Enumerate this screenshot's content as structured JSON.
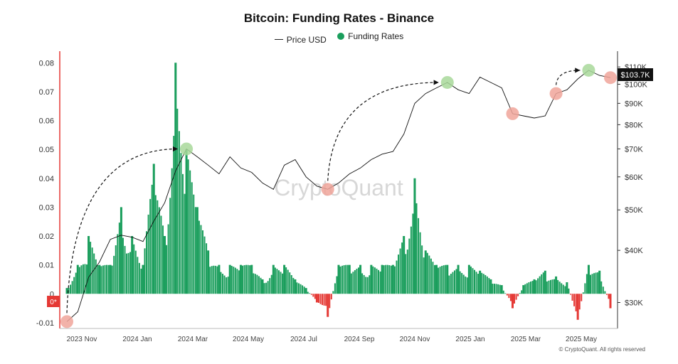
{
  "chart_data": {
    "type": "bar",
    "title": "Bitcoin: Funding Rates - Binance",
    "legend": [
      "Price USD",
      "Funding Rates"
    ],
    "legend_position": "top-center",
    "left_axis": {
      "ticks": [
        "0.08",
        "0.07",
        "0.06",
        "0.05",
        "0.04",
        "0.03",
        "0.02",
        "0.01",
        "0",
        "-0.01"
      ],
      "range": [
        -0.012,
        0.084
      ]
    },
    "right_axis": {
      "scale": "log",
      "ticks": [
        "$110K",
        "$100K",
        "$90K",
        "$80K",
        "$70K",
        "$60K",
        "$50K",
        "$40K",
        "$30K"
      ],
      "range": [
        26000,
        120000
      ]
    },
    "x_ticks": [
      "2023 Nov",
      "2024 Jan",
      "2024 Mar",
      "2024 May",
      "2024 Jul",
      "2024 Sep",
      "2024 Nov",
      "2025 Jan",
      "2025 Mar",
      "2025 May"
    ],
    "price_label": "$103.7K",
    "zero_label": "0*",
    "watermark": "CryptoQuant",
    "footer": "© CryptoQuant. All rights reserved",
    "grid": false,
    "colors": {
      "positive": "#1a9e5c",
      "negative": "#e53935",
      "price": "#111111",
      "axis_red": "#e53935",
      "high_marker": "#a8d89a",
      "low_marker": "#f0a59a"
    },
    "series": [
      {
        "name": "Price USD",
        "values": [
          27000,
          28500,
          34500,
          37500,
          42500,
          43500,
          43000,
          42000,
          47000,
          52000,
          62000,
          70000,
          67000,
          64000,
          61000,
          67000,
          63000,
          61500,
          58000,
          56000,
          64000,
          66000,
          60000,
          57000,
          56000,
          58000,
          61000,
          63000,
          66000,
          68000,
          69000,
          76000,
          90000,
          95000,
          98000,
          101000,
          97000,
          95000,
          104000,
          101000,
          98000,
          85000,
          84000,
          83000,
          84000,
          95000,
          97000,
          103000,
          108000,
          105000,
          103700
        ]
      },
      {
        "name": "Funding Rates",
        "values": [
          0.002,
          0.01,
          0.02,
          0.01,
          0.01,
          0.03,
          0.02,
          0.01,
          0.045,
          0.02,
          0.08,
          0.05,
          0.03,
          0.015,
          0.01,
          0.01,
          0.01,
          0.01,
          0.005,
          0.01,
          0.01,
          0.005,
          0.002,
          -0.003,
          -0.008,
          0.01,
          0.01,
          0.01,
          0.01,
          0.01,
          0.01,
          0.02,
          0.04,
          0.015,
          0.01,
          0.01,
          0.01,
          0.01,
          0.008,
          0.005,
          0.003,
          -0.005,
          0.003,
          0.005,
          0.008,
          0.006,
          0.004,
          -0.009,
          0.01,
          0.008,
          -0.005
        ]
      }
    ],
    "annotations": [
      {
        "type": "low",
        "x_index": 0
      },
      {
        "type": "high",
        "x_index": 11
      },
      {
        "type": "low",
        "x_index": 24
      },
      {
        "type": "high",
        "x_index": 35
      },
      {
        "type": "low",
        "x_index": 41
      },
      {
        "type": "low",
        "x_index": 45
      },
      {
        "type": "high",
        "x_index": 48
      },
      {
        "type": "low",
        "x_index": 50
      }
    ]
  }
}
